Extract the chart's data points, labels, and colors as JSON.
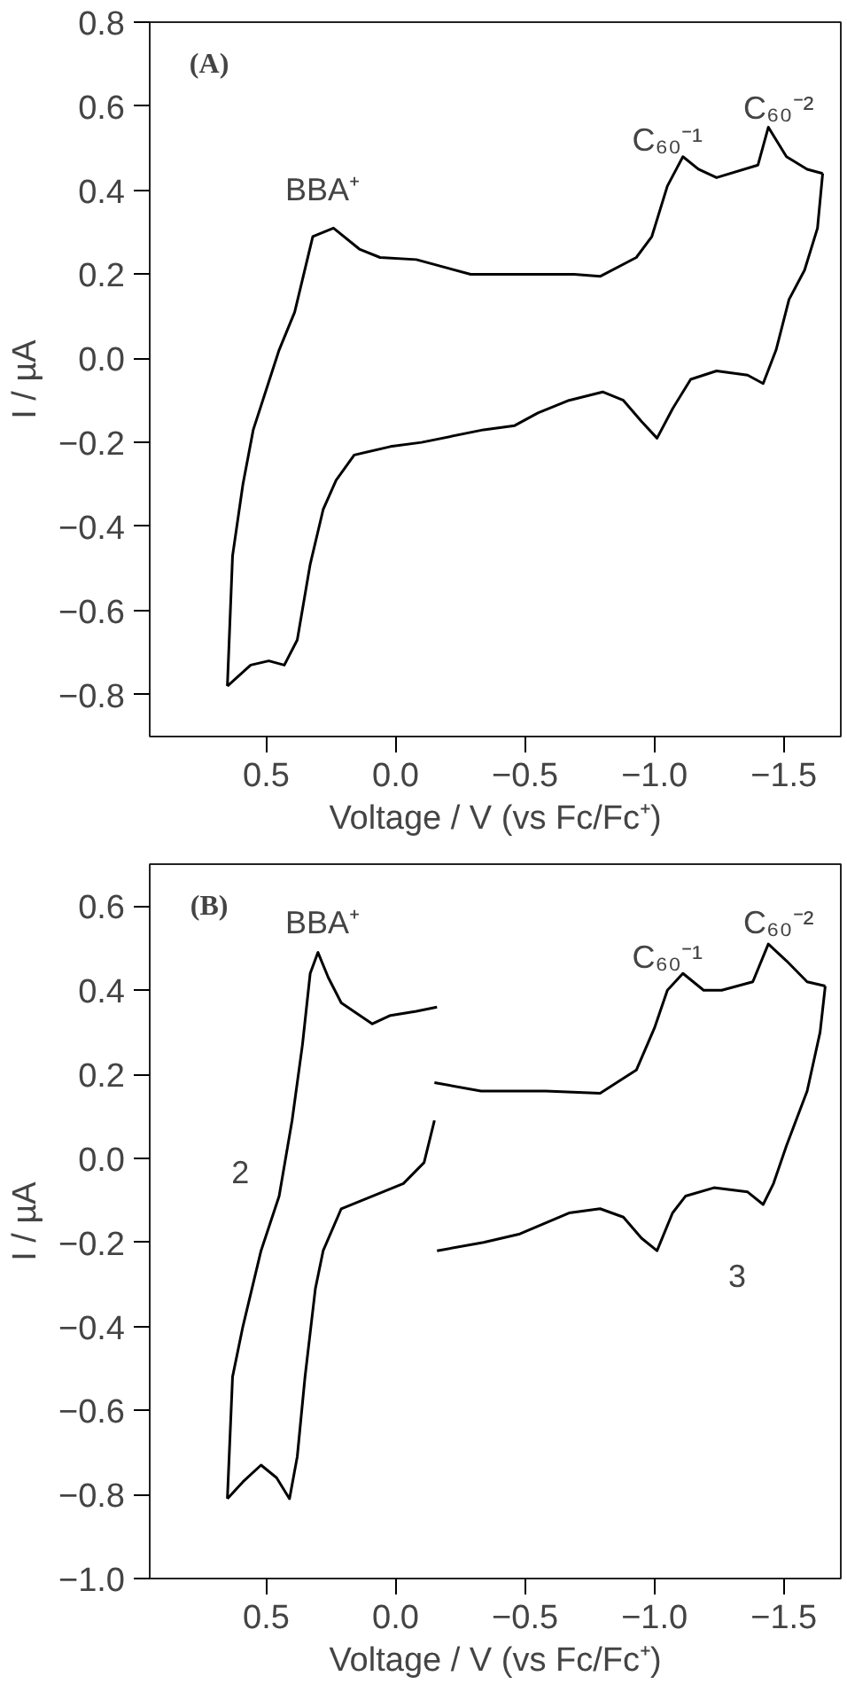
{
  "chart_data": [
    {
      "type": "line",
      "xlabel": "Voltage / V (vs Fc/Fc⁺)",
      "ylabel": "I / µA",
      "xlim": [
        0.95,
        -1.72
      ],
      "ylim": [
        -0.9,
        0.8
      ],
      "xticks": [
        {
          "value": 0.5,
          "label": "0.5"
        },
        {
          "value": 0,
          "label": "0.0"
        },
        {
          "value": -0.5,
          "label": "−0.5"
        },
        {
          "value": -1.0,
          "label": "−1.0"
        },
        {
          "value": -1.5,
          "label": "−1.5"
        }
      ],
      "yticks": [
        {
          "value": 0.8,
          "label": "0.8"
        },
        {
          "value": 0.6,
          "label": "0.6"
        },
        {
          "value": 0.4,
          "label": "0.4"
        },
        {
          "value": 0.2,
          "label": "0.2"
        },
        {
          "value": 0,
          "label": "0.0"
        },
        {
          "value": -0.2,
          "label": "−0.2"
        },
        {
          "value": -0.4,
          "label": "−0.4"
        },
        {
          "value": -0.6,
          "label": "−0.6"
        },
        {
          "value": -0.8,
          "label": "−0.8"
        }
      ],
      "marker": "none",
      "line_style": "solid",
      "series": [
        {
          "color": "#000000",
          "x": [
            0.65,
            0.63,
            0.59,
            0.55,
            0.45,
            0.39,
            0.32,
            0.24,
            0.14,
            0.06,
            -0.08,
            -0.29,
            -0.69,
            -0.79,
            -0.93,
            -0.99,
            -1.05,
            -1.11,
            -1.17,
            -1.24,
            -1.4,
            -1.44,
            -1.51,
            -1.59,
            -1.65
          ],
          "values": [
            -0.78,
            -0.47,
            -0.3,
            -0.17,
            0.02,
            0.11,
            0.29,
            0.31,
            0.26,
            0.24,
            0.235,
            0.2,
            0.2,
            0.195,
            0.24,
            0.29,
            0.41,
            0.48,
            0.45,
            0.43,
            0.46,
            0.55,
            0.48,
            0.45,
            0.44
          ]
        },
        {
          "color": "#000000",
          "x": [
            -1.65,
            -1.63,
            -1.58,
            -1.52,
            -1.47,
            -1.42,
            -1.36,
            -1.24,
            -1.14,
            -1.07,
            -1.01,
            -0.95,
            -0.88,
            -0.8,
            -0.67,
            -0.55,
            -0.46,
            -0.34,
            -0.1,
            0.02,
            0.16,
            0.23,
            0.28,
            0.33,
            0.38,
            0.43,
            0.49,
            0.56,
            0.65
          ],
          "values": [
            0.44,
            0.31,
            0.21,
            0.14,
            0.02,
            -0.06,
            -0.04,
            -0.03,
            -0.05,
            -0.12,
            -0.19,
            -0.15,
            -0.1,
            -0.08,
            -0.1,
            -0.13,
            -0.16,
            -0.17,
            -0.2,
            -0.21,
            -0.23,
            -0.29,
            -0.36,
            -0.49,
            -0.67,
            -0.73,
            -0.72,
            -0.73,
            -0.78
          ]
        }
      ],
      "annotations": [
        "(A)",
        "BBA⁺",
        "C₆₀⁻¹",
        "C₆₀⁻²"
      ]
    },
    {
      "type": "line",
      "xlabel": "Voltage / V (vs Fc/Fc⁺)",
      "ylabel": "I / µA",
      "xlim": [
        0.95,
        -1.72
      ],
      "ylim": [
        -1.0,
        0.7
      ],
      "xticks": [
        {
          "value": 0.5,
          "label": "0.5"
        },
        {
          "value": 0,
          "label": "0.0"
        },
        {
          "value": -0.5,
          "label": "−0.5"
        },
        {
          "value": -1.0,
          "label": "−1.0"
        },
        {
          "value": -1.5,
          "label": "−1.5"
        }
      ],
      "yticks": [
        {
          "value": 0.6,
          "label": "0.6"
        },
        {
          "value": 0.4,
          "label": "0.4"
        },
        {
          "value": 0.2,
          "label": "0.2"
        },
        {
          "value": 0,
          "label": "0.0"
        },
        {
          "value": -0.2,
          "label": "−0.2"
        },
        {
          "value": -0.4,
          "label": "−0.4"
        },
        {
          "value": -0.6,
          "label": "−0.6"
        },
        {
          "value": -0.8,
          "label": "−0.8"
        },
        {
          "value": -1.0,
          "label": "−1.0"
        }
      ],
      "marker": "none",
      "line_style": "solid",
      "series": [
        {
          "color": "#000000",
          "x": [
            -0.16,
            -0.08,
            0.02,
            0.09,
            0.21,
            0.26,
            0.3,
            0.33,
            0.36,
            0.4,
            0.45,
            0.52,
            0.59,
            0.63,
            0.65
          ],
          "values": [
            0.36,
            0.35,
            0.34,
            0.32,
            0.37,
            0.43,
            0.49,
            0.44,
            0.27,
            0.09,
            -0.09,
            -0.22,
            -0.4,
            -0.52,
            -0.81
          ]
        },
        {
          "color": "#000000",
          "x": [
            0.65,
            0.59,
            0.52,
            0.46,
            0.41,
            0.38,
            0.35,
            0.31,
            0.28,
            0.21,
            0.09,
            -0.03,
            -0.11,
            -0.15
          ],
          "values": [
            -0.81,
            -0.77,
            -0.73,
            -0.76,
            -0.81,
            -0.71,
            -0.52,
            -0.31,
            -0.22,
            -0.12,
            -0.09,
            -0.06,
            -0.01,
            0.09
          ]
        },
        {
          "color": "#000000",
          "x": [
            -0.15,
            -0.33,
            -0.58,
            -0.79,
            -0.93,
            -1.0,
            -1.05,
            -1.11,
            -1.19,
            -1.26,
            -1.38,
            -1.44,
            -1.51,
            -1.59,
            -1.66
          ],
          "values": [
            0.18,
            0.16,
            0.16,
            0.155,
            0.21,
            0.31,
            0.4,
            0.44,
            0.4,
            0.4,
            0.42,
            0.51,
            0.47,
            0.42,
            0.41
          ]
        },
        {
          "color": "#000000",
          "x": [
            -1.66,
            -1.64,
            -1.59,
            -1.51,
            -1.46,
            -1.42,
            -1.36,
            -1.23,
            -1.12,
            -1.07,
            -1.01,
            -0.95,
            -0.88,
            -0.79,
            -0.67,
            -0.48,
            -0.34,
            -0.16
          ],
          "values": [
            0.41,
            0.3,
            0.16,
            0.03,
            -0.06,
            -0.11,
            -0.08,
            -0.07,
            -0.09,
            -0.13,
            -0.22,
            -0.19,
            -0.14,
            -0.12,
            -0.13,
            -0.18,
            -0.2,
            -0.22
          ]
        }
      ],
      "annotations": [
        "(B)",
        "BBA⁺",
        "C₆₀⁻¹",
        "C₆₀⁻²",
        "2",
        "3"
      ]
    }
  ]
}
